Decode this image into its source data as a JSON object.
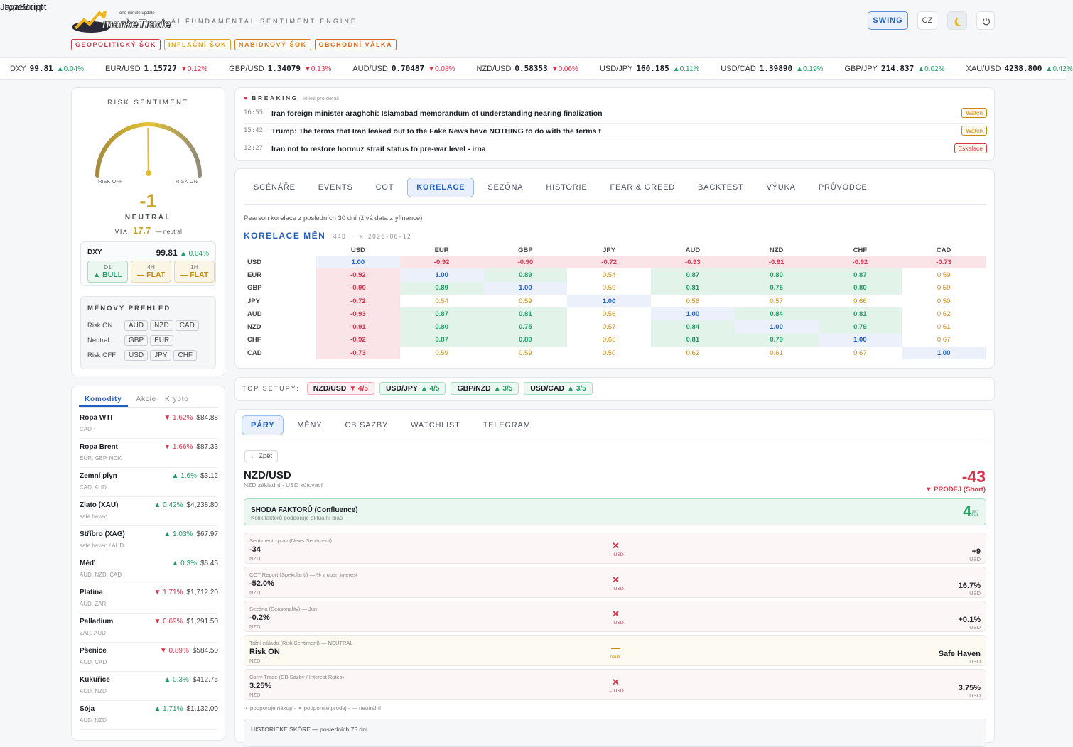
{
  "corner_text": [
    "JavaScript",
    "TypeScript"
  ],
  "header": {
    "logo_tagline": "one minute update",
    "logo": "markeTrade",
    "engine": "AI FUNDAMENTAL SENTIMENT ENGINE",
    "shocks": [
      {
        "label": "GEOPOLITICKÝ ŠOK",
        "color": "#d9334a"
      },
      {
        "label": "INFLAČNÍ ŠOK",
        "color": "#e0a21a"
      },
      {
        "label": "NABÍDKOVÝ ŠOK",
        "color": "#e07a1a"
      },
      {
        "label": "OBCHODNÍ VÁLKA",
        "color": "#e0651a"
      }
    ],
    "mode": "SWING",
    "lang": "CZ"
  },
  "ticker": [
    {
      "symbol": "DXY",
      "price": "99.81",
      "change": "▲0.04%"
    },
    {
      "symbol": "EUR/USD",
      "price": "1.15727",
      "change": "▼0.12%"
    },
    {
      "symbol": "GBP/USD",
      "price": "1.34079",
      "change": "▼0.13%"
    },
    {
      "symbol": "AUD/USD",
      "price": "0.70487",
      "change": "▼0.08%"
    },
    {
      "symbol": "NZD/USD",
      "price": "0.58353",
      "change": "▼0.06%"
    },
    {
      "symbol": "USD/JPY",
      "price": "160.185",
      "change": "▲0.11%"
    },
    {
      "symbol": "USD/CAD",
      "price": "1.39890",
      "change": "▲0.19%"
    },
    {
      "symbol": "GBP/JPY",
      "price": "214.837",
      "change": "▲0.02%"
    },
    {
      "symbol": "XAU/USD",
      "price": "4238.800",
      "change": "▲0.42%"
    }
  ],
  "risk": {
    "title": "RISK SENTIMENT",
    "off": "RISK OFF",
    "on": "RISK ON",
    "score": "-1",
    "state": "NEUTRAL",
    "vix_label": "VIX",
    "vix": "17.7",
    "vix_state": "— neutral"
  },
  "dxy": {
    "symbol": "DXY",
    "price": "99.81",
    "change": "▲ 0.04%",
    "frames": [
      {
        "tf": "D1",
        "trend": "▲ BULL",
        "color": "#1f9d63"
      },
      {
        "tf": "4H",
        "trend": "— FLAT",
        "color": "#c98a12"
      },
      {
        "tf": "1H",
        "trend": "— FLAT",
        "color": "#c98a12"
      }
    ]
  },
  "overview": {
    "title": "MĚNOVÝ PŘEHLED",
    "groups": [
      {
        "label": "Risk ON",
        "currencies": [
          "AUD",
          "NZD",
          "CAD"
        ]
      },
      {
        "label": "Neutral",
        "currencies": [
          "GBP",
          "EUR"
        ]
      },
      {
        "label": "Risk OFF",
        "currencies": [
          "USD",
          "JPY",
          "CHF"
        ]
      }
    ]
  },
  "commodities": {
    "tabs": [
      "Komodity",
      "Akcie",
      "Krypto"
    ],
    "active_tab": 0,
    "items": [
      {
        "name": "Ropa WTI",
        "change": "▼ 1.62%",
        "price": "$84.88",
        "note": "CAD ↑"
      },
      {
        "name": "Ropa Brent",
        "change": "▼ 1.66%",
        "price": "$87.33",
        "note": "EUR, GBP, NOK"
      },
      {
        "name": "Zemní plyn",
        "change": "▲ 1.6%",
        "price": "$3.12",
        "note": "CAD, AUD"
      },
      {
        "name": "Zlato (XAU)",
        "change": "▲ 0.42%",
        "price": "$4,238.80",
        "note": "safe haven"
      },
      {
        "name": "Stříbro (XAG)",
        "change": "▲ 1.03%",
        "price": "$67.97",
        "note": "safe haven / AUD"
      },
      {
        "name": "Měď",
        "change": "▲ 0.3%",
        "price": "$6.45",
        "note": "AUD, NZD, CAD"
      },
      {
        "name": "Platina",
        "change": "▼ 1.71%",
        "price": "$1,712.20",
        "note": "AUD, ZAR"
      },
      {
        "name": "Palladium",
        "change": "▼ 0.69%",
        "price": "$1,291.50",
        "note": "ZAR, AUD"
      },
      {
        "name": "Pšenice",
        "change": "▼ 0.89%",
        "price": "$584.50",
        "note": "AUD, CAD"
      },
      {
        "name": "Kukuřice",
        "change": "▲ 0.3%",
        "price": "$412.75",
        "note": "AUD, NZD"
      },
      {
        "name": "Sója",
        "change": "▲ 1.71%",
        "price": "$1,132.00",
        "note": "AUD, NZD"
      }
    ]
  },
  "breaking": {
    "title": "BREAKING",
    "hint": "klikni pro detail",
    "items": [
      {
        "time": "16:55",
        "text": "Iran foreign minister araghchi: Islamabad memorandum of understanding nearing finalization",
        "tag": "Watch",
        "tag_color": "#c98a12"
      },
      {
        "time": "15:42",
        "text": "Trump: The terms that Iran leaked out to the Fake News have NOTHING to do with the terms t",
        "tag": "Watch",
        "tag_color": "#c98a12"
      },
      {
        "time": "12:27",
        "text": "Iran not to restore hormuz strait status to pre-war level - irna",
        "tag": "Eskalace",
        "tag_color": "#d9334a"
      }
    ]
  },
  "analysis_tabs": [
    "SCÉNÁŘE",
    "EVENTS",
    "COT",
    "KORELACE",
    "SEZÓNA",
    "HISTORIE",
    "FEAR & GREED",
    "BACKTEST",
    "VÝUKA",
    "PRŮVODCE"
  ],
  "analysis_active": 3,
  "correlation": {
    "note": "Pearson korelace z posledních 30 dní (živá data z yfinance)",
    "title": "KORELACE MĚN",
    "meta": "44D · k 2026-06-12",
    "currencies": [
      "USD",
      "EUR",
      "GBP",
      "JPY",
      "AUD",
      "NZD",
      "CHF",
      "CAD"
    ],
    "rows": [
      [
        "1.00",
        "-0.92",
        "-0.90",
        "-0.72",
        "-0.93",
        "-0.91",
        "-0.92",
        "-0.73"
      ],
      [
        "-0.92",
        "1.00",
        "0.89",
        "0.54",
        "0.87",
        "0.80",
        "0.87",
        "0.59"
      ],
      [
        "-0.90",
        "0.89",
        "1.00",
        "0.59",
        "0.81",
        "0.75",
        "0.80",
        "0.59"
      ],
      [
        "-0.72",
        "0.54",
        "0.59",
        "1.00",
        "0.56",
        "0.57",
        "0.66",
        "0.50"
      ],
      [
        "-0.93",
        "0.87",
        "0.81",
        "0.56",
        "1.00",
        "0.84",
        "0.81",
        "0.62"
      ],
      [
        "-0.91",
        "0.80",
        "0.75",
        "0.57",
        "0.84",
        "1.00",
        "0.79",
        "0.61"
      ],
      [
        "-0.92",
        "0.87",
        "0.80",
        "0.66",
        "0.81",
        "0.79",
        "1.00",
        "0.67"
      ],
      [
        "-0.73",
        "0.59",
        "0.59",
        "0.50",
        "0.62",
        "0.61",
        "0.67",
        "1.00"
      ]
    ]
  },
  "top_setups": {
    "label": "TOP SETUPY:",
    "items": [
      {
        "pair": "NZD/USD",
        "signal": "▼ 4/5"
      },
      {
        "pair": "USD/JPY",
        "signal": "▲ 4/5"
      },
      {
        "pair": "GBP/NZD",
        "signal": "▲ 3/5"
      },
      {
        "pair": "USD/CAD",
        "signal": "▲ 3/5"
      }
    ]
  },
  "pair_tabs": [
    "PÁRY",
    "MĚNY",
    "CB SAZBY",
    "WATCHLIST",
    "TELEGRAM"
  ],
  "pair_active": 0,
  "pair": {
    "back": "← Zpět",
    "symbol": "NZD/USD",
    "subtitle": "NZD základní · USD kótovací",
    "score": "-43",
    "bias": "▼ PRODEJ (Short)",
    "confluence": {
      "title": "SHODA FAKTORŮ (Confluence)",
      "subtitle": "Kolik faktorů podporuje aktuální bias",
      "count": "4",
      "total": "/5"
    },
    "factors": [
      {
        "label": "Sentiment zpráv (News Sentiment)",
        "base": "-34",
        "base_ccy": "NZD",
        "icon": "✕",
        "dir": "→ USD",
        "quote": "+9",
        "quote_ccy": "USD"
      },
      {
        "label": "COT Report (Spekulanti) — % z open interest",
        "base": "-52.0%",
        "base_ccy": "NZD",
        "icon": "✕",
        "dir": "→ USD",
        "quote": "16.7%",
        "quote_ccy": "USD"
      },
      {
        "label": "Sezóna (Seasonality) — Jun",
        "base": "-0.2%",
        "base_ccy": "NZD",
        "icon": "✕",
        "dir": "→ USD",
        "quote": "+0.1%",
        "quote_ccy": "USD"
      },
      {
        "label": "Tržní nálada (Risk Sentiment) — NEUTRAL",
        "base": "Risk ON",
        "base_ccy": "NZD",
        "icon": "—",
        "dir": "neutr.",
        "quote": "Safe Haven",
        "quote_ccy": "USD"
      },
      {
        "label": "Carry Trade (CB Sazby / Interest Rates)",
        "base": "3.25%",
        "base_ccy": "NZD",
        "icon": "✕",
        "dir": "→ USD",
        "quote": "3.75%",
        "quote_ccy": "USD"
      }
    ],
    "legend": "✓ podporuje nákup · ✕ podporuje prodej · — neutrální",
    "history": "HISTORICKÉ SKÓRE — posledních 75 dní"
  }
}
